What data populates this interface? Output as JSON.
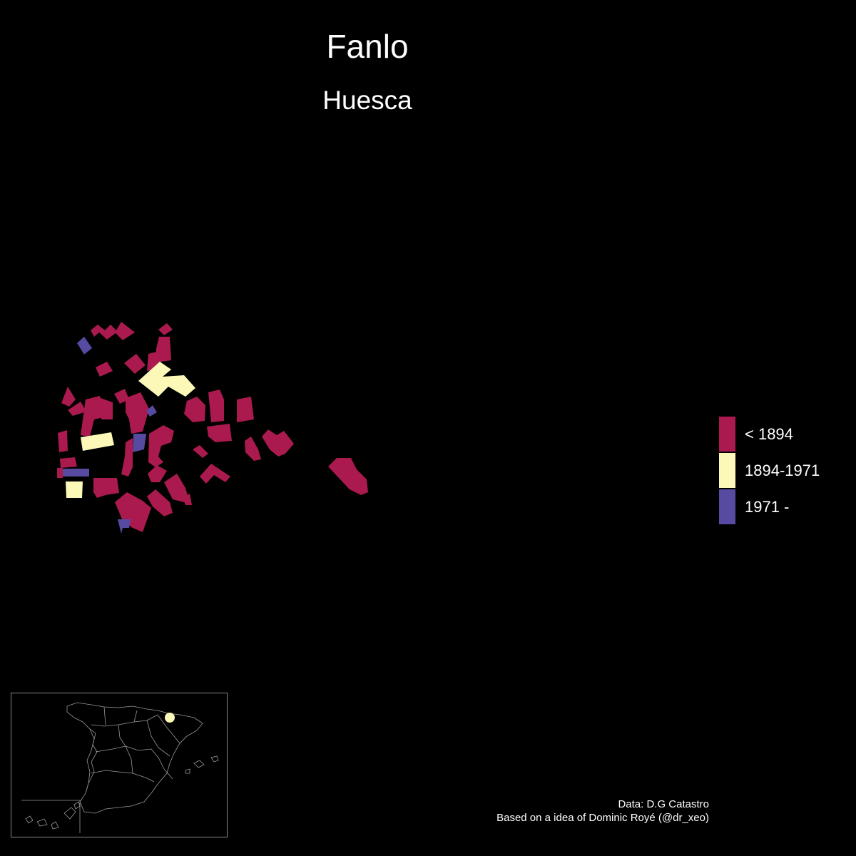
{
  "title": "Fanlo",
  "subtitle": "Huesca",
  "legend": {
    "items": [
      {
        "label": "< 1894",
        "color": "#ab1a4f"
      },
      {
        "label": "1894-1971",
        "color": "#fcf9b8"
      },
      {
        "label": "1971 -",
        "color": "#564ba0"
      }
    ]
  },
  "inset_map": {
    "region": "Spain",
    "marker_color": "#fcf9b8",
    "outline_color": "#9a9a9a"
  },
  "credits": {
    "line1": "Data: D.G Catastro",
    "line2": "Based on a idea of Dominic Royé (@dr_xeo)"
  },
  "background": "#000000"
}
